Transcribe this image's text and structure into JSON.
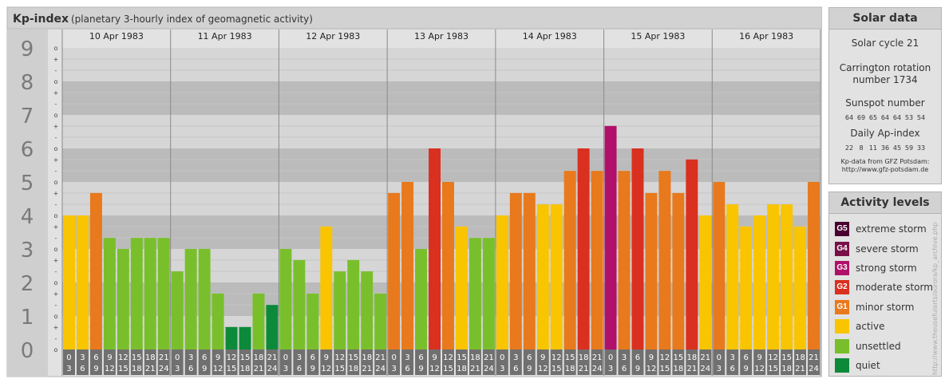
{
  "header": {
    "title": "Kp-index",
    "subtitle": "(planetary 3-hourly index of geomagnetic activity)"
  },
  "chart_data": {
    "type": "bar",
    "title": "Kp-index",
    "subtitle": "(planetary 3-hourly index of geomagnetic activity)",
    "ylim": [
      0,
      9
    ],
    "y_ticks": [
      "0",
      "1",
      "2",
      "3",
      "4",
      "5",
      "6",
      "7",
      "8",
      "9"
    ],
    "subticks": [
      "o",
      "-",
      "+"
    ],
    "days": [
      "10 Apr 1983",
      "11 Apr 1983",
      "12 Apr 1983",
      "13 Apr 1983",
      "14 Apr 1983",
      "15 Apr 1983",
      "16 Apr 1983"
    ],
    "slots": [
      [
        "0",
        "3"
      ],
      [
        "3",
        "6"
      ],
      [
        "6",
        "9"
      ],
      [
        "9",
        "12"
      ],
      [
        "12",
        "15"
      ],
      [
        "15",
        "18"
      ],
      [
        "18",
        "21"
      ],
      [
        "21",
        "24"
      ]
    ],
    "values": [
      [
        4.0,
        4.0,
        4.67,
        3.33,
        3.0,
        3.33,
        3.33,
        3.33
      ],
      [
        2.33,
        3.0,
        3.0,
        1.67,
        0.67,
        0.67,
        1.67,
        1.33
      ],
      [
        3.0,
        2.67,
        1.67,
        3.67,
        2.33,
        2.67,
        2.33,
        1.67
      ],
      [
        4.67,
        5.0,
        3.0,
        6.0,
        5.0,
        3.67,
        3.33,
        3.33
      ],
      [
        4.0,
        4.67,
        4.67,
        4.33,
        4.33,
        5.33,
        6.0,
        5.33
      ],
      [
        6.67,
        5.33,
        6.0,
        4.67,
        5.33,
        4.67,
        5.67,
        4.0
      ],
      [
        5.0,
        4.33,
        3.67,
        4.0,
        4.33,
        4.33,
        3.67,
        5.0
      ]
    ],
    "band_colors": [
      "#bbbbbb",
      "#d6d6d6"
    ],
    "grid": true
  },
  "solar": {
    "header": "Solar data",
    "cycle": "Solar cycle 21",
    "carrington_line1": "Carrington rotation",
    "carrington_line2": "number 1734",
    "sunspot_label": "Sunspot number",
    "sunspot_values": [
      "64",
      "69",
      "65",
      "64",
      "64",
      "53",
      "54"
    ],
    "ap_label": "Daily Ap-index",
    "ap_values": [
      "22",
      "8",
      "11",
      "36",
      "45",
      "59",
      "33"
    ],
    "source_line1": "Kp-data from GFZ Potsdam:",
    "source_line2": "http://www.gfz-potsdam.de"
  },
  "legend": {
    "header": "Activity levels",
    "items": [
      {
        "code": "G5",
        "label": "extreme storm",
        "color": "#4a0030"
      },
      {
        "code": "G4",
        "label": "severe storm",
        "color": "#7a1048"
      },
      {
        "code": "G3",
        "label": "strong storm",
        "color": "#b0106a"
      },
      {
        "code": "G2",
        "label": "moderate storm",
        "color": "#d93020"
      },
      {
        "code": "G1",
        "label": "minor storm",
        "color": "#e8791c"
      },
      {
        "code": "",
        "label": "active",
        "color": "#f9c400"
      },
      {
        "code": "",
        "label": "unsettled",
        "color": "#79bf2c"
      },
      {
        "code": "",
        "label": "quiet",
        "color": "#0c8a3a"
      }
    ]
  },
  "credit": "http://www.theusefularts/aurora/kp_archive.php"
}
